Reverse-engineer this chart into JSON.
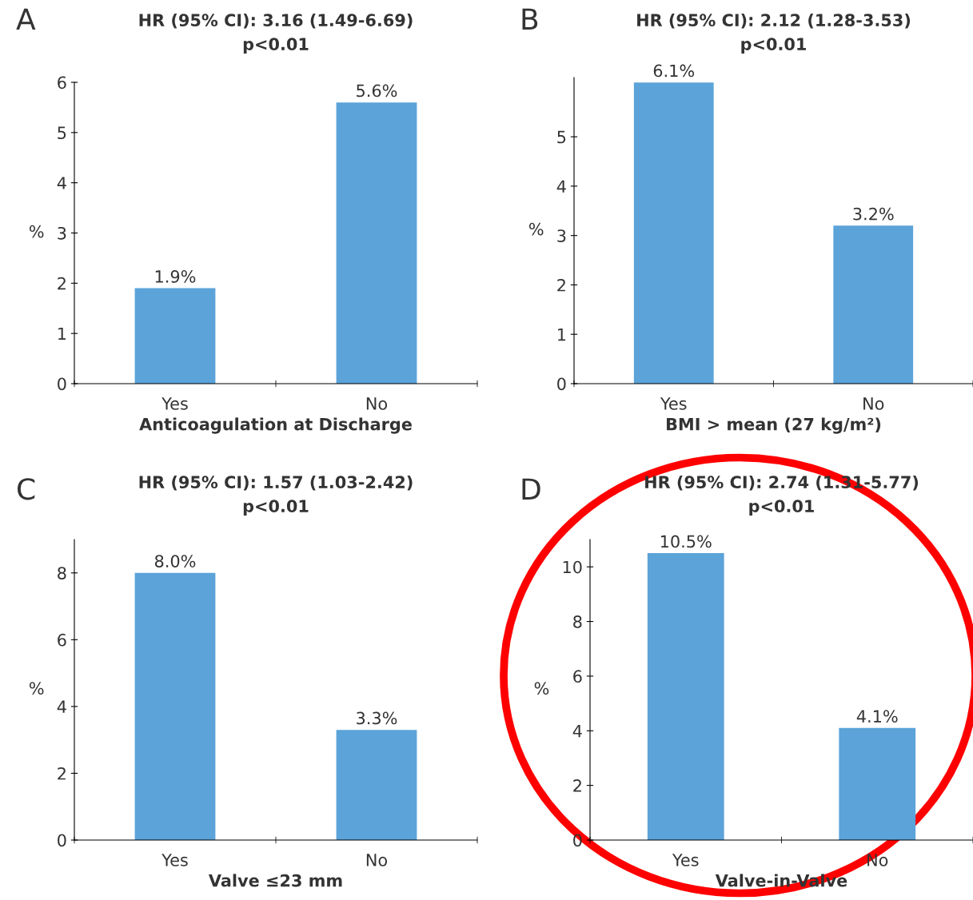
{
  "chart_data": [
    {
      "type": "bar",
      "title": "HR (95% CI): 3.16 (1.49-6.69)",
      "subtitle": "p<0.01",
      "annotations": [
        "A"
      ],
      "categories": [
        "Yes",
        "No"
      ],
      "values": [
        1.9,
        5.6
      ],
      "value_labels": [
        "1.9%",
        "5.6%"
      ],
      "color": "#5ba3d9",
      "xlabel": "Anticoagulation at Discharge",
      "ylabel": "%",
      "ylim": [
        0,
        6
      ],
      "yticks": [
        0,
        1,
        2,
        3,
        4,
        5,
        6
      ],
      "grid": false,
      "legend": false
    },
    {
      "type": "bar",
      "title": "HR (95% CI): 2.12 (1.28-3.53)",
      "subtitle": "p<0.01",
      "annotations": [
        "B"
      ],
      "categories": [
        "Yes",
        "No"
      ],
      "values": [
        6.1,
        3.2
      ],
      "value_labels": [
        "6.1%",
        "3.2%"
      ],
      "color": "#5ba3d9",
      "xlabel": "BMI > mean (27 kg/m²)",
      "ylabel": "%",
      "ylim": [
        0,
        6.2
      ],
      "yticks": [
        0,
        1,
        2,
        3,
        4,
        5
      ],
      "grid": false,
      "legend": false
    },
    {
      "type": "bar",
      "title": "HR (95% CI): 1.57 (1.03-2.42)",
      "subtitle": "p<0.01",
      "annotations": [
        "C"
      ],
      "categories": [
        "Yes",
        "No"
      ],
      "values": [
        8.0,
        3.3
      ],
      "value_labels": [
        "8.0%",
        "3.3%"
      ],
      "color": "#5ba3d9",
      "xlabel": "Valve ≤23 mm",
      "ylabel": "%",
      "ylim": [
        0,
        9
      ],
      "yticks": [
        0,
        2,
        4,
        6,
        8
      ],
      "grid": false,
      "legend": false
    },
    {
      "type": "bar",
      "title": "HR (95% CI): 2.74 (1.31-5.77)",
      "subtitle": "p<0.01",
      "annotations": [
        "D"
      ],
      "categories": [
        "Yes",
        "No"
      ],
      "values": [
        10.5,
        4.1
      ],
      "value_labels": [
        "10.5%",
        "4.1%"
      ],
      "color": "#5ba3d9",
      "xlabel": "Valve-in-Valve",
      "ylabel": "%",
      "ylim": [
        0,
        11
      ],
      "yticks": [
        0,
        2,
        4,
        6,
        8,
        10
      ],
      "grid": false,
      "legend": false
    }
  ]
}
